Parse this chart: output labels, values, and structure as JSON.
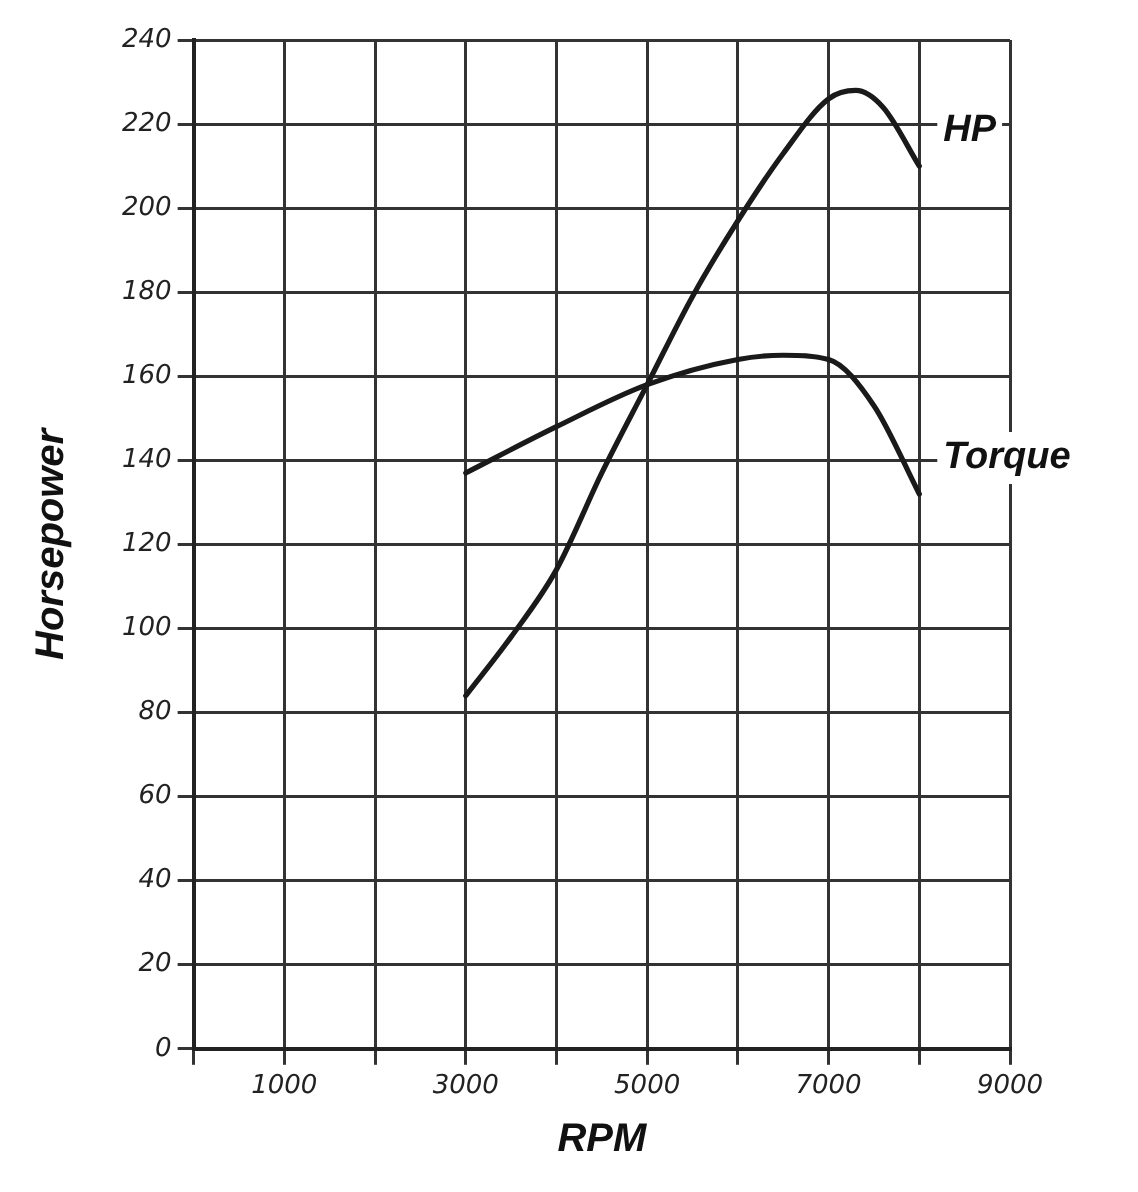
{
  "chart_data": {
    "type": "line",
    "xlabel": "RPM",
    "ylabel": "Horsepower",
    "series": [
      {
        "name": "HP",
        "color": "#1a1a1a",
        "x": [
          3000,
          3500,
          4000,
          4500,
          5000,
          5500,
          6000,
          6500,
          7000,
          7300,
          7600,
          8000
        ],
        "values": [
          84,
          98,
          114,
          137,
          158,
          179,
          197,
          213,
          226,
          228,
          224,
          210
        ]
      },
      {
        "name": "Torque",
        "color": "#1a1a1a",
        "x": [
          3000,
          4000,
          5000,
          6000,
          6500,
          7000,
          7500,
          8000
        ],
        "values": [
          137,
          148,
          158,
          164,
          165,
          164,
          153,
          132
        ]
      }
    ],
    "xlim": [
      0,
      9000
    ],
    "xticks": [
      {
        "value": 0,
        "label": null
      },
      1000,
      {
        "value": 2000,
        "label": null
      },
      3000,
      {
        "value": 4000,
        "label": null
      },
      5000,
      {
        "value": 6000,
        "label": null
      },
      7000,
      {
        "value": 8000,
        "label": null
      },
      9000
    ],
    "ylim": [
      0,
      240
    ],
    "yticks": [
      0,
      20,
      40,
      60,
      80,
      100,
      120,
      140,
      160,
      180,
      200,
      220,
      240
    ],
    "grid": true,
    "legend": false,
    "marker": "none",
    "line_style": "solid"
  }
}
